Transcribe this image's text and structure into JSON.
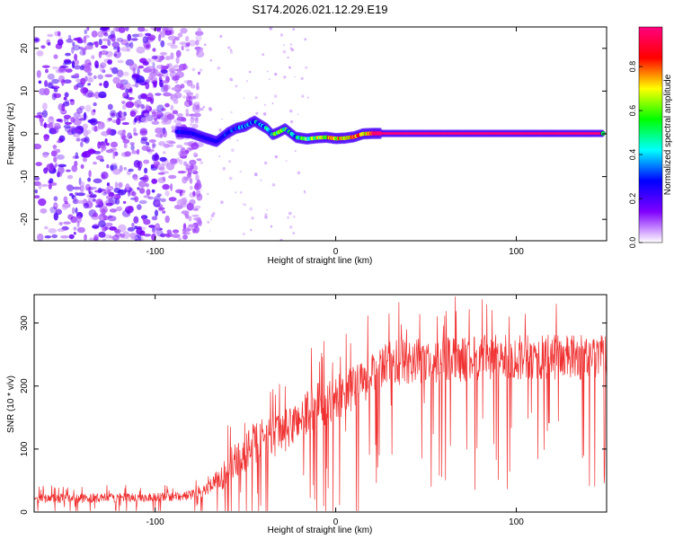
{
  "title": "S174.2026.021.12.29.E19",
  "chart_data": [
    {
      "type": "heatmap",
      "xlabel": "Height of straight line (km)",
      "ylabel": "Frequency (Hz)",
      "xlim": [
        -167,
        150
      ],
      "ylim": [
        -25,
        25
      ],
      "xticks": [
        -100,
        0,
        100
      ],
      "yticks": [
        -20,
        -10,
        0,
        10,
        20
      ],
      "colorbar": {
        "label": "Normalized spectral amplitude",
        "range": [
          0,
          0.98
        ],
        "ticks": [
          0.0,
          0.2,
          0.4,
          0.6,
          0.8
        ],
        "tick_labels": [
          "0.0",
          "0.2",
          "0.4",
          "0.6",
          "0.8"
        ],
        "colors": [
          "#ffffff",
          "#8000ff",
          "#0000ff",
          "#00ffff",
          "#00ff00",
          "#ffff00",
          "#ff0000",
          "#ff0080"
        ]
      },
      "noise_region": {
        "x_range": [
          -167,
          -85
        ],
        "freq_range": [
          -25,
          25
        ],
        "amplitude_range": [
          0.05,
          0.22
        ]
      },
      "signal_trace": {
        "x": [
          -88,
          -80,
          -72,
          -66,
          -60,
          -55,
          -50,
          -45,
          -42,
          -38,
          -35,
          -32,
          -28,
          -22,
          -16,
          -10,
          -5,
          0,
          5,
          10,
          15,
          20,
          25,
          40,
          60,
          80,
          100,
          120,
          148
        ],
        "freq": [
          0.5,
          0.2,
          -1.0,
          -1.8,
          0.2,
          1.3,
          1.8,
          3.0,
          2.2,
          1.2,
          -0.2,
          0.3,
          1.2,
          -0.8,
          -1.2,
          -0.9,
          -0.8,
          -1.1,
          -1.0,
          -0.7,
          0.0,
          0.1,
          0.1,
          0.1,
          0.1,
          0.1,
          0.1,
          0.1,
          0.1
        ],
        "amplitude": [
          0.35,
          0.3,
          0.25,
          0.3,
          0.35,
          0.4,
          0.45,
          0.5,
          0.55,
          0.55,
          0.6,
          0.7,
          0.65,
          0.6,
          0.7,
          0.8,
          0.85,
          0.88,
          0.9,
          0.9,
          0.92,
          0.95,
          0.97,
          0.97,
          0.97,
          0.97,
          0.97,
          0.97,
          0.97
        ]
      }
    },
    {
      "type": "line",
      "xlabel": "Height of straight line (km)",
      "ylabel": "SNR (10 * v/v)",
      "xlim": [
        -167,
        150
      ],
      "ylim": [
        0,
        345
      ],
      "xticks": [
        -100,
        0,
        100
      ],
      "yticks": [
        0,
        100,
        200,
        300
      ],
      "color": "#f03030",
      "series": [
        {
          "name": "SNR",
          "x": [
            -167,
            -140,
            -110,
            -85,
            -75,
            -68,
            -62,
            -58,
            -50,
            -45,
            -40,
            -35,
            -30,
            -25,
            -20,
            -15,
            -10,
            -5,
            0,
            5,
            10,
            15,
            20,
            25,
            30,
            40,
            60,
            80,
            100,
            120,
            140,
            150
          ],
          "values": [
            22,
            22,
            23,
            25,
            30,
            45,
            60,
            75,
            95,
            110,
            115,
            120,
            125,
            135,
            150,
            160,
            170,
            175,
            180,
            190,
            195,
            205,
            215,
            225,
            235,
            240,
            240,
            245,
            245,
            245,
            245,
            245
          ],
          "spread": [
            12,
            12,
            12,
            12,
            14,
            20,
            40,
            45,
            50,
            55,
            55,
            55,
            55,
            55,
            55,
            60,
            60,
            60,
            60,
            60,
            60,
            60,
            60,
            60,
            60,
            60,
            60,
            60,
            60,
            60,
            60,
            60
          ]
        }
      ]
    }
  ]
}
